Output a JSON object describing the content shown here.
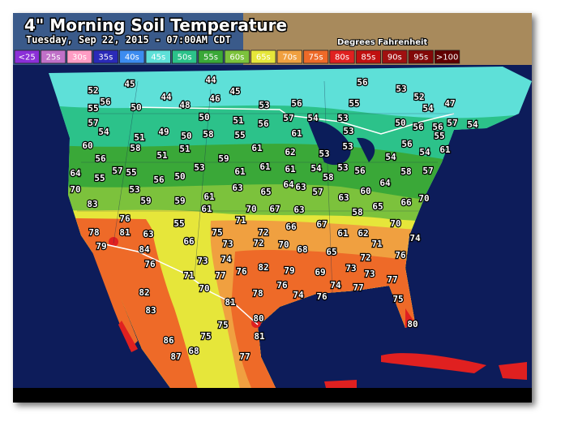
{
  "header": {
    "title": "4\" Morning Soil Temperature",
    "subtitle": "Tuesday, Sep 22, 2015 - 07:00AM CDT",
    "units": "Degrees Fahrenheit"
  },
  "legend": [
    {
      "label": "<25",
      "color": "#8b2fd8"
    },
    {
      "label": "25s",
      "color": "#c070c8"
    },
    {
      "label": "30s",
      "color": "#ff9cc4"
    },
    {
      "label": "35s",
      "color": "#2a2ab8"
    },
    {
      "label": "40s",
      "color": "#3c8cf0"
    },
    {
      "label": "45s",
      "color": "#5ee0d8"
    },
    {
      "label": "50s",
      "color": "#2cc28a"
    },
    {
      "label": "55s",
      "color": "#3aa838"
    },
    {
      "label": "60s",
      "color": "#7cc23c"
    },
    {
      "label": "65s",
      "color": "#e6e63a"
    },
    {
      "label": "70s",
      "color": "#f0a040"
    },
    {
      "label": "75s",
      "color": "#ee6a28"
    },
    {
      "label": "80s",
      "color": "#e02020"
    },
    {
      "label": "85s",
      "color": "#c01010"
    },
    {
      "label": "90s",
      "color": "#a01010"
    },
    {
      "label": "95s",
      "color": "#820808"
    },
    {
      "label": ">100",
      "color": "#600000"
    }
  ],
  "stations": [
    52,
    45,
    44,
    56,
    53,
    52,
    47,
    55,
    56,
    50,
    44,
    46,
    45,
    48,
    53,
    56,
    55,
    54,
    57,
    54,
    50,
    51,
    56,
    57,
    54,
    53,
    50,
    56,
    56,
    57,
    54,
    51,
    49,
    50,
    58,
    55,
    61,
    53,
    55,
    60,
    58,
    51,
    61,
    62,
    53,
    53,
    56,
    61,
    56,
    51,
    59,
    54,
    54,
    54,
    64,
    55,
    57,
    55,
    56,
    50,
    53,
    61,
    61,
    61,
    58,
    53,
    56,
    58,
    57,
    70,
    53,
    63,
    65,
    64,
    63,
    57,
    63,
    60,
    64,
    70,
    66,
    83,
    59,
    59,
    61,
    61,
    70,
    67,
    63,
    58,
    65,
    76,
    55,
    71,
    66,
    67,
    70,
    78,
    81,
    63,
    66,
    75,
    72,
    61,
    62,
    74,
    79,
    84,
    73,
    72,
    70,
    68,
    65,
    71,
    76,
    76,
    73,
    74,
    82,
    79,
    73,
    72,
    71,
    77,
    76,
    69,
    73,
    82,
    70,
    78,
    76,
    74,
    77,
    77,
    81,
    74,
    76,
    75,
    83,
    80,
    75,
    80,
    75,
    81,
    86,
    68,
    87,
    77
  ]
}
